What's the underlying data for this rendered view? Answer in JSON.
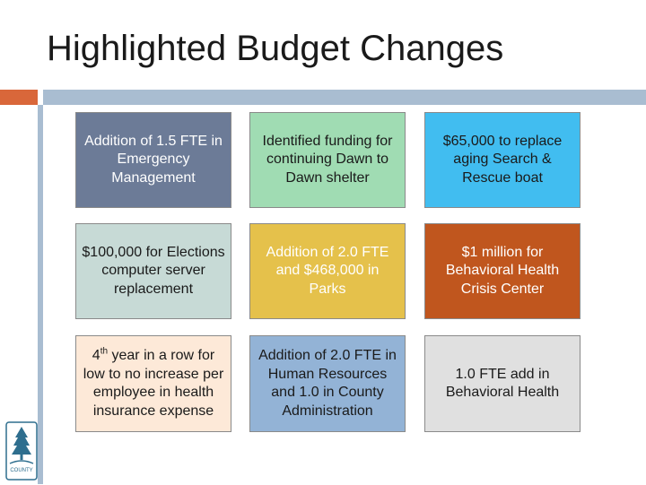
{
  "slide": {
    "title": "Highlighted Budget Changes"
  },
  "boxes": [
    {
      "text": "Addition of 1.5 FTE in Emergency Management",
      "bg": "#6c7b97",
      "fg": "#ffffff"
    },
    {
      "text": "Identified funding for continuing Dawn to Dawn shelter",
      "bg": "#a0dcb3",
      "fg": "#1a1a1a"
    },
    {
      "text": "$65,000 to replace aging Search & Rescue boat",
      "bg": "#41bdf0",
      "fg": "#1a1a1a"
    },
    {
      "text": "$100,000 for Elections computer server replacement",
      "bg": "#c7dad6",
      "fg": "#1a1a1a"
    },
    {
      "text": "Addition of 2.0 FTE and $468,000 in Parks",
      "bg": "#e5c14b",
      "fg": "#ffffff"
    },
    {
      "text": "$1 million for Behavioral Health Crisis Center",
      "bg": "#c0561e",
      "fg": "#ffffff"
    },
    {
      "text_before": "4",
      "text_sup": "th",
      "text_after": " year in a row for low to no increase per employee in health insurance expense",
      "bg": "#fde9d8",
      "fg": "#1a1a1a"
    },
    {
      "text": "Addition of 2.0 FTE in Human Resources and 1.0 in County Administration",
      "bg": "#93b3d6",
      "fg": "#1a1a1a"
    },
    {
      "text": "1.0 FTE add in Behavioral Health",
      "bg": "#e0e0e0",
      "fg": "#1a1a1a"
    }
  ],
  "logo": {
    "icon": "county-tree-logo-icon",
    "text": "COUNTY"
  }
}
